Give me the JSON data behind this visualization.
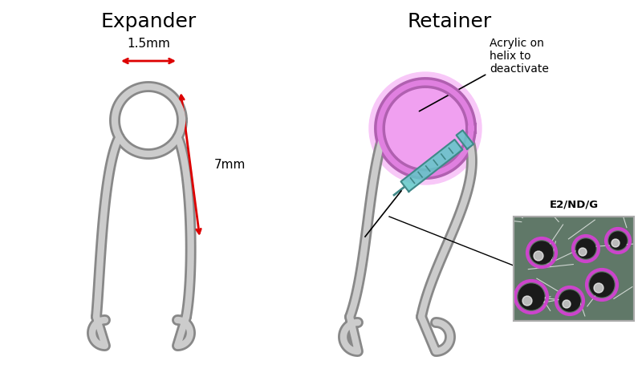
{
  "title_left": "Expander",
  "title_right": "Retainer",
  "label_1_5mm": "1.5mm",
  "label_7mm": "7mm",
  "label_acrylic": "Acrylic on\nhelix to\ndeactivate",
  "label_e2ndg": "E2/ND/G",
  "wire_color": "#888888",
  "wire_color_dark": "#666666",
  "wire_lw": 8,
  "wire_lw_inner": 5,
  "bg_color": "#ffffff",
  "arrow_color": "#dd0000",
  "pink_fill": "#f0a0f0",
  "pink_glow": "#f8c8f8",
  "purple_ring": "#b060b0",
  "cyan_syringe": "#60c8c8",
  "micro_bg": "#607868"
}
